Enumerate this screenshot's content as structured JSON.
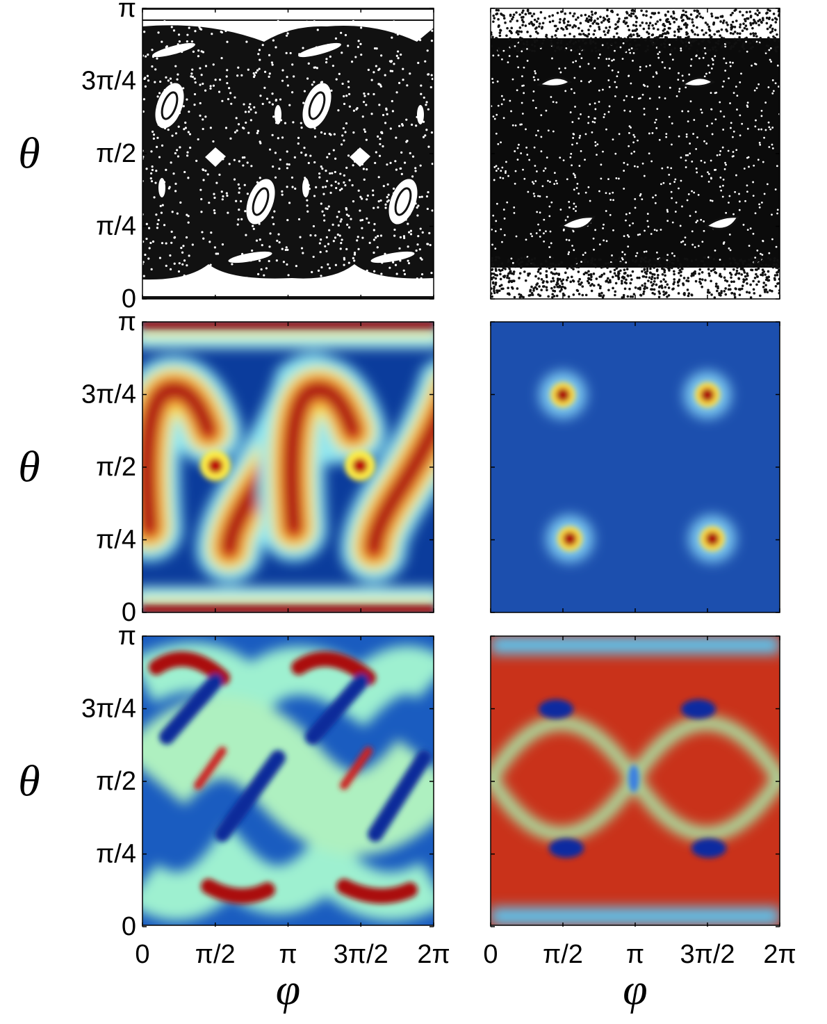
{
  "rows": [
    {
      "y_label": "θ",
      "y_ticks": [
        "π",
        "3π/4",
        "π/2",
        "π/4",
        "0"
      ]
    },
    {
      "y_label": "θ",
      "y_ticks": [
        "π",
        "3π/4",
        "π/2",
        "π/4",
        "0"
      ]
    },
    {
      "y_label": "θ",
      "y_ticks": [
        "π",
        "3π/4",
        "π/2",
        "π/4",
        "0"
      ]
    }
  ],
  "columns": [
    {
      "x_label": "φ",
      "x_ticks": [
        "0",
        "π/2",
        "π",
        "3π/2",
        "2π"
      ]
    },
    {
      "x_label": "φ",
      "x_ticks": [
        "0",
        "π/2",
        "π",
        "3π/2",
        "2π"
      ]
    }
  ]
}
